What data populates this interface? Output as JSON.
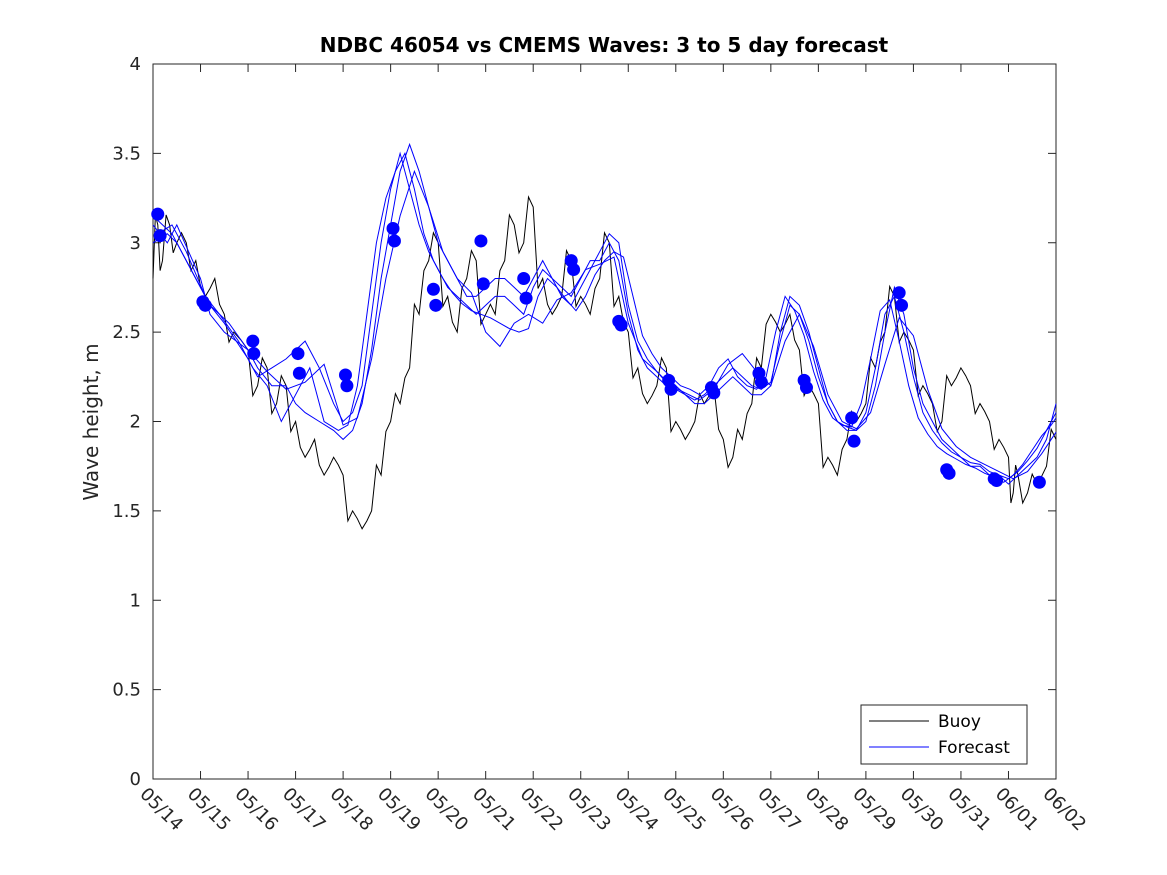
{
  "chart_data": {
    "type": "line",
    "title": "NDBC 46054 vs CMEMS Waves: 3 to 5 day forecast",
    "xlabel": "",
    "ylabel": "Wave height, m",
    "xlim": [
      0,
      19
    ],
    "ylim": [
      0,
      4
    ],
    "x_ticks": [
      "05/14",
      "05/15",
      "05/16",
      "05/17",
      "05/18",
      "05/19",
      "05/20",
      "05/21",
      "05/22",
      "05/23",
      "05/24",
      "05/25",
      "05/26",
      "05/27",
      "05/28",
      "05/29",
      "05/30",
      "05/31",
      "06/01",
      "06/02"
    ],
    "y_ticks": [
      "0",
      "0.5",
      "1",
      "1.5",
      "2",
      "2.5",
      "3",
      "3.5",
      "4"
    ],
    "legend": {
      "position": "bottom-right",
      "entries": [
        "Buoy",
        "Forecast"
      ]
    },
    "colors": {
      "buoy": "#000000",
      "forecast": "#0000ff",
      "markers": "#0000ff"
    },
    "buoy": {
      "name": "Buoy",
      "x": [
        0.0,
        0.1,
        0.2,
        0.35,
        0.5,
        0.7,
        0.9,
        1.1,
        1.3,
        1.5,
        1.7,
        2.0,
        2.2,
        2.4,
        2.6,
        2.8,
        3.0,
        3.2,
        3.4,
        3.6,
        3.8,
        4.0,
        4.2,
        4.4,
        4.6,
        4.8,
        5.0,
        5.2,
        5.4,
        5.6,
        5.8,
        6.0,
        6.2,
        6.4,
        6.6,
        6.8,
        7.0,
        7.2,
        7.4,
        7.6,
        7.8,
        8.0,
        8.2,
        8.4,
        8.6,
        8.8,
        9.0,
        9.2,
        9.4,
        9.6,
        9.8,
        10.0,
        10.2,
        10.4,
        10.6,
        10.8,
        11.0,
        11.2,
        11.4,
        11.6,
        11.8,
        12.0,
        12.2,
        12.4,
        12.6,
        12.8,
        13.0,
        13.2,
        13.4,
        13.6,
        13.8,
        14.0,
        14.2,
        14.4,
        14.6,
        14.8,
        15.0,
        15.2,
        15.4,
        15.6,
        15.8,
        16.0,
        16.2,
        16.4,
        16.6,
        16.8,
        17.0,
        17.2,
        17.4,
        17.6,
        17.8,
        18.0,
        18.1,
        18.2,
        18.4,
        18.6,
        18.8,
        19.0
      ],
      "y": [
        2.8,
        3.1,
        2.9,
        3.1,
        3.0,
        3.0,
        2.9,
        2.7,
        2.8,
        2.6,
        2.5,
        2.4,
        2.2,
        2.3,
        2.1,
        2.2,
        2.0,
        1.8,
        1.9,
        1.7,
        1.8,
        1.7,
        1.5,
        1.4,
        1.5,
        1.7,
        2.0,
        2.1,
        2.3,
        2.6,
        2.9,
        3.0,
        2.7,
        2.5,
        2.8,
        2.9,
        2.6,
        2.6,
        2.9,
        3.1,
        3.0,
        3.2,
        2.8,
        2.6,
        2.7,
        2.9,
        2.7,
        2.6,
        2.8,
        3.0,
        2.7,
        2.5,
        2.3,
        2.1,
        2.2,
        2.3,
        2.0,
        1.9,
        2.0,
        2.1,
        2.2,
        1.9,
        1.8,
        1.9,
        2.1,
        2.3,
        2.6,
        2.5,
        2.6,
        2.4,
        2.2,
        2.1,
        1.8,
        1.7,
        1.9,
        2.0,
        2.1,
        2.3,
        2.5,
        2.7,
        2.5,
        2.4,
        2.2,
        2.1,
        2.0,
        2.2,
        2.3,
        2.2,
        2.1,
        2.0,
        1.9,
        1.8,
        1.6,
        1.7,
        1.6,
        1.65,
        1.75,
        1.9
      ]
    },
    "forecast_runs": [
      {
        "name": "Forecast",
        "x": [
          0.0,
          0.3,
          0.5,
          1.0,
          1.2,
          1.5,
          2.0,
          2.2,
          2.5,
          2.8,
          3.0,
          3.2,
          3.5,
          3.8,
          4.0,
          4.2,
          4.4,
          4.6,
          4.8,
          5.0,
          5.2,
          5.4,
          5.6,
          5.8,
          6.0,
          6.2,
          6.4,
          6.6,
          6.8,
          7.0,
          7.2,
          7.4,
          7.6,
          7.8,
          8.0,
          8.2,
          8.4,
          8.6,
          8.8,
          9.0,
          9.2,
          9.4,
          9.6,
          9.8,
          10.0,
          10.2,
          10.4,
          10.6,
          10.8,
          11.0,
          11.2,
          11.4,
          11.6,
          11.8,
          12.0,
          12.2,
          12.4,
          12.6,
          12.8,
          13.0,
          13.2,
          13.4,
          13.6,
          13.8,
          14.0,
          14.2,
          14.4,
          14.6,
          14.8,
          15.0,
          15.2,
          15.4,
          15.6,
          15.8,
          16.0,
          16.2,
          16.4,
          16.6,
          16.8,
          17.0,
          17.2,
          17.4,
          17.6,
          17.8,
          18.0,
          18.2,
          18.4,
          18.6,
          18.8,
          19.0
        ],
        "y": [
          3.1,
          3.0,
          3.1,
          2.8,
          2.6,
          2.5,
          2.4,
          2.3,
          2.2,
          2.2,
          2.1,
          2.05,
          2.0,
          1.95,
          1.9,
          1.95,
          2.1,
          2.4,
          2.8,
          3.1,
          3.4,
          3.55,
          3.4,
          3.2,
          3.0,
          2.9,
          2.8,
          2.7,
          2.7,
          2.75,
          2.8,
          2.8,
          2.75,
          2.7,
          2.8,
          2.9,
          2.8,
          2.75,
          2.7,
          2.8,
          2.9,
          2.9,
          3.0,
          2.9,
          2.6,
          2.4,
          2.3,
          2.25,
          2.2,
          2.2,
          2.15,
          2.1,
          2.1,
          2.15,
          2.2,
          2.25,
          2.2,
          2.15,
          2.15,
          2.2,
          2.5,
          2.7,
          2.65,
          2.5,
          2.3,
          2.1,
          2.0,
          1.95,
          1.95,
          2.0,
          2.2,
          2.5,
          2.75,
          2.6,
          2.3,
          2.1,
          2.0,
          1.9,
          1.85,
          1.8,
          1.75,
          1.75,
          1.7,
          1.7,
          1.65,
          1.7,
          1.75,
          1.8,
          1.9,
          2.1
        ]
      },
      {
        "name": "Forecast",
        "x": [
          0.0,
          0.3,
          0.5,
          1.0,
          1.2,
          1.5,
          2.0,
          2.2,
          2.5,
          2.8,
          3.0,
          3.2,
          3.5,
          3.8,
          4.0,
          4.2,
          4.4,
          4.6,
          4.8,
          5.0,
          5.2,
          5.4,
          5.6,
          5.8,
          6.0,
          6.2,
          6.4,
          6.6,
          6.8,
          7.0,
          7.2,
          7.4,
          7.6,
          7.8,
          8.0,
          8.2,
          8.4,
          8.6,
          8.8,
          9.0,
          9.2,
          9.4,
          9.6,
          9.8,
          10.0,
          10.2,
          10.4,
          10.6,
          10.8,
          11.0,
          11.2,
          11.4,
          11.6,
          11.8,
          12.0,
          12.2,
          12.4,
          12.6,
          12.8,
          13.0,
          13.2,
          13.4,
          13.6,
          13.8,
          14.0,
          14.2,
          14.4,
          14.6,
          14.8,
          15.0,
          15.2,
          15.4,
          15.6,
          15.8,
          16.0,
          16.2,
          16.4,
          16.6,
          16.8,
          17.0,
          17.2,
          17.4,
          17.6,
          17.8,
          18.0,
          18.2,
          18.4,
          18.6,
          18.8,
          19.0
        ],
        "y": [
          3.0,
          3.05,
          3.0,
          2.75,
          2.65,
          2.55,
          2.35,
          2.25,
          2.3,
          2.35,
          2.4,
          2.45,
          2.3,
          2.1,
          2.0,
          2.05,
          2.2,
          2.6,
          3.0,
          3.3,
          3.5,
          3.3,
          3.1,
          2.95,
          2.85,
          2.75,
          2.7,
          2.65,
          2.6,
          2.65,
          2.7,
          2.7,
          2.65,
          2.6,
          2.75,
          2.85,
          2.8,
          2.7,
          2.65,
          2.75,
          2.85,
          2.95,
          3.05,
          3.0,
          2.65,
          2.45,
          2.35,
          2.28,
          2.22,
          2.18,
          2.15,
          2.12,
          2.15,
          2.2,
          2.25,
          2.3,
          2.25,
          2.2,
          2.18,
          2.22,
          2.45,
          2.65,
          2.6,
          2.45,
          2.25,
          2.1,
          2.0,
          1.97,
          1.95,
          2.05,
          2.3,
          2.6,
          2.7,
          2.5,
          2.25,
          2.05,
          1.95,
          1.88,
          1.83,
          1.8,
          1.77,
          1.76,
          1.72,
          1.7,
          1.68,
          1.72,
          1.78,
          1.85,
          1.95,
          2.05
        ]
      },
      {
        "name": "Forecast",
        "x": [
          0.1,
          0.4,
          0.7,
          1.1,
          1.4,
          1.8,
          2.1,
          2.4,
          2.7,
          3.0,
          3.3,
          3.6,
          3.9,
          4.1,
          4.3,
          4.5,
          4.7,
          4.9,
          5.1,
          5.3,
          5.5,
          5.7,
          5.9,
          6.1,
          6.3,
          6.5,
          6.7,
          6.9,
          7.1,
          7.3,
          7.5,
          7.7,
          7.9,
          8.1,
          8.3,
          8.5,
          8.7,
          8.9,
          9.1,
          9.3,
          9.5,
          9.7,
          9.9,
          10.1,
          10.3,
          10.5,
          10.7,
          10.9,
          11.1,
          11.3,
          11.5,
          11.7,
          11.9,
          12.1,
          12.3,
          12.5,
          12.7,
          12.9,
          13.1,
          13.3,
          13.5,
          13.7,
          13.9,
          14.1,
          14.3,
          14.5,
          14.7,
          14.9,
          15.1,
          15.3,
          15.5,
          15.7,
          15.9,
          16.1,
          16.3,
          16.5,
          16.7,
          16.9,
          17.1,
          17.3,
          17.5,
          17.7,
          17.9,
          18.1,
          18.3,
          18.5,
          18.7,
          18.9,
          19.0
        ],
        "y": [
          3.05,
          3.1,
          2.95,
          2.7,
          2.6,
          2.45,
          2.3,
          2.2,
          2.0,
          2.15,
          2.3,
          2.0,
          1.95,
          1.98,
          2.2,
          2.6,
          3.0,
          3.25,
          3.4,
          3.5,
          3.3,
          3.05,
          2.9,
          2.8,
          2.72,
          2.66,
          2.62,
          2.6,
          2.58,
          2.55,
          2.52,
          2.5,
          2.52,
          2.7,
          2.8,
          2.75,
          2.68,
          2.62,
          2.7,
          2.82,
          2.9,
          2.95,
          2.92,
          2.7,
          2.48,
          2.38,
          2.3,
          2.25,
          2.2,
          2.18,
          2.15,
          2.2,
          2.3,
          2.35,
          2.25,
          2.2,
          2.18,
          2.25,
          2.5,
          2.7,
          2.62,
          2.48,
          2.28,
          2.12,
          2.02,
          1.98,
          1.97,
          2.1,
          2.35,
          2.62,
          2.68,
          2.45,
          2.2,
          2.02,
          1.93,
          1.86,
          1.82,
          1.79,
          1.76,
          1.74,
          1.71,
          1.69,
          1.66,
          1.7,
          1.76,
          1.84,
          1.92,
          1.98,
          2.02
        ]
      },
      {
        "name": "Forecast",
        "x": [
          0.0,
          0.4,
          0.8,
          1.2,
          1.6,
          2.0,
          2.4,
          2.8,
          3.2,
          3.6,
          4.0,
          4.3,
          4.6,
          4.9,
          5.2,
          5.5,
          5.8,
          6.1,
          6.4,
          6.7,
          7.0,
          7.3,
          7.6,
          7.9,
          8.2,
          8.5,
          8.8,
          9.1,
          9.4,
          9.7,
          10.0,
          10.3,
          10.6,
          10.9,
          11.2,
          11.5,
          11.8,
          12.1,
          12.4,
          12.7,
          13.0,
          13.3,
          13.6,
          13.9,
          14.2,
          14.5,
          14.8,
          15.1,
          15.4,
          15.7,
          16.0,
          16.3,
          16.6,
          16.9,
          17.2,
          17.5,
          17.8,
          18.1,
          18.4,
          18.7,
          19.0
        ],
        "y": [
          3.15,
          3.05,
          2.85,
          2.65,
          2.55,
          2.4,
          2.28,
          2.18,
          2.22,
          2.32,
          1.98,
          2.02,
          2.35,
          2.8,
          3.15,
          3.4,
          3.2,
          2.95,
          2.8,
          2.72,
          2.5,
          2.42,
          2.55,
          2.6,
          2.55,
          2.68,
          2.72,
          2.85,
          2.88,
          2.92,
          2.55,
          2.35,
          2.28,
          2.2,
          2.16,
          2.12,
          2.18,
          2.32,
          2.38,
          2.28,
          2.2,
          2.45,
          2.6,
          2.42,
          2.15,
          2.0,
          1.96,
          2.05,
          2.32,
          2.58,
          2.48,
          2.18,
          1.96,
          1.86,
          1.8,
          1.76,
          1.72,
          1.68,
          1.72,
          1.82,
          1.94
        ]
      }
    ],
    "markers": {
      "x": [
        0.1,
        0.15,
        1.05,
        1.1,
        2.1,
        2.12,
        3.05,
        3.08,
        4.05,
        4.08,
        5.05,
        5.08,
        5.9,
        5.95,
        6.9,
        6.95,
        7.8,
        7.85,
        8.8,
        8.85,
        9.8,
        9.85,
        10.85,
        10.9,
        11.75,
        11.8,
        12.75,
        12.8,
        13.7,
        13.75,
        14.7,
        14.75,
        15.7,
        15.75,
        16.7,
        16.75,
        17.7,
        17.75,
        18.65
      ],
      "y": [
        3.16,
        3.04,
        2.67,
        2.65,
        2.45,
        2.38,
        2.38,
        2.27,
        2.26,
        2.2,
        3.08,
        3.01,
        2.74,
        2.65,
        3.01,
        2.77,
        2.8,
        2.69,
        2.9,
        2.85,
        2.56,
        2.54,
        2.23,
        2.18,
        2.19,
        2.16,
        2.27,
        2.22,
        2.23,
        2.19,
        2.02,
        1.89,
        2.72,
        2.65,
        1.73,
        1.71,
        1.68,
        1.67,
        1.66
      ]
    }
  }
}
